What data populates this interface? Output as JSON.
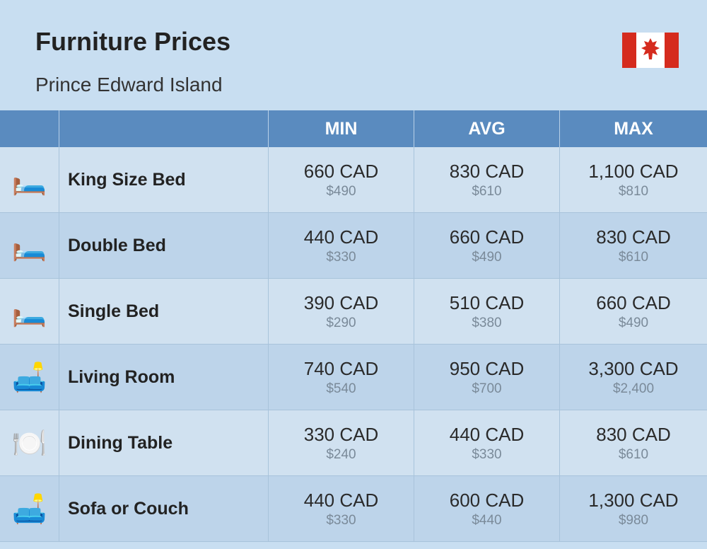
{
  "header": {
    "title": "Furniture Prices",
    "subtitle": "Prince Edward Island"
  },
  "columns": {
    "min": "MIN",
    "avg": "AVG",
    "max": "MAX"
  },
  "styling": {
    "page_bg": "#c8def1",
    "header_bg": "#5a8bbf",
    "header_text": "#ffffff",
    "row_bg_a": "#d0e1f0",
    "row_bg_b": "#bdd4ea",
    "border_color": "#a8c3db",
    "primary_text": "#2a2a2a",
    "secondary_text": "#7a8a99",
    "title_fontsize": 36,
    "subtitle_fontsize": 28,
    "header_fontsize": 25,
    "name_fontsize": 25,
    "primary_fontsize": 26,
    "secondary_fontsize": 19
  },
  "flag": {
    "country": "Canada",
    "red": "#d52b1e",
    "white": "#ffffff"
  },
  "rows": [
    {
      "icon": "🛏️",
      "name": "King Size Bed",
      "min_cad": "660 CAD",
      "min_usd": "$490",
      "avg_cad": "830 CAD",
      "avg_usd": "$610",
      "max_cad": "1,100 CAD",
      "max_usd": "$810"
    },
    {
      "icon": "🛏️",
      "name": "Double Bed",
      "min_cad": "440 CAD",
      "min_usd": "$330",
      "avg_cad": "660 CAD",
      "avg_usd": "$490",
      "max_cad": "830 CAD",
      "max_usd": "$610"
    },
    {
      "icon": "🛏️",
      "name": "Single Bed",
      "min_cad": "390 CAD",
      "min_usd": "$290",
      "avg_cad": "510 CAD",
      "avg_usd": "$380",
      "max_cad": "660 CAD",
      "max_usd": "$490"
    },
    {
      "icon": "🛋️",
      "name": "Living Room",
      "min_cad": "740 CAD",
      "min_usd": "$540",
      "avg_cad": "950 CAD",
      "avg_usd": "$700",
      "max_cad": "3,300 CAD",
      "max_usd": "$2,400"
    },
    {
      "icon": "🍽️",
      "name": "Dining Table",
      "min_cad": "330 CAD",
      "min_usd": "$240",
      "avg_cad": "440 CAD",
      "avg_usd": "$330",
      "max_cad": "830 CAD",
      "max_usd": "$610"
    },
    {
      "icon": "🛋️",
      "name": "Sofa or Couch",
      "min_cad": "440 CAD",
      "min_usd": "$330",
      "avg_cad": "600 CAD",
      "avg_usd": "$440",
      "max_cad": "1,300 CAD",
      "max_usd": "$980"
    }
  ]
}
